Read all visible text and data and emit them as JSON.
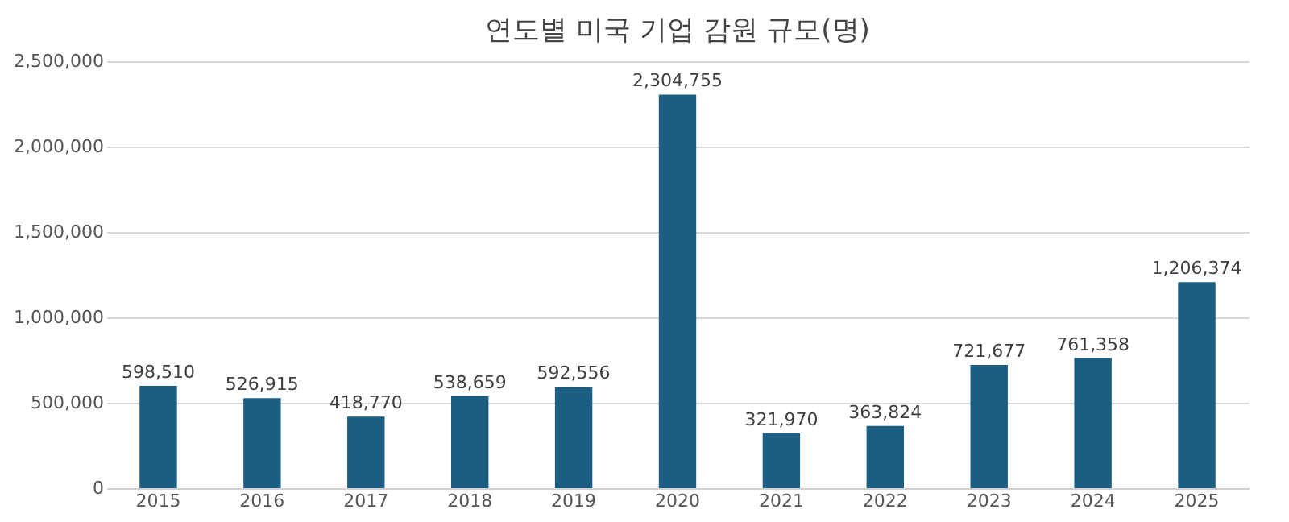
{
  "chart_data": {
    "type": "bar",
    "title": "연도별 미국 기업 감원 규모(명)",
    "categories": [
      "2015",
      "2016",
      "2017",
      "2018",
      "2019",
      "2020",
      "2021",
      "2022",
      "2023",
      "2024",
      "2025"
    ],
    "values": [
      598510,
      526915,
      418770,
      538659,
      592556,
      2304755,
      321970,
      363824,
      721677,
      761358,
      1206374
    ],
    "value_labels": [
      "598,510",
      "526,915",
      "418,770",
      "538,659",
      "592,556",
      "2,304,755",
      "321,970",
      "363,824",
      "721,677",
      "761,358",
      "1,206,374"
    ],
    "color": "#1b5e82",
    "ylim": [
      0,
      2500000
    ],
    "yticks": [
      0,
      {
        "value": 500000,
        "label": "500,000"
      },
      {
        "value": 1000000,
        "label": "1,000,000"
      },
      {
        "value": 1500000,
        "label": "1,500,000"
      },
      {
        "value": 2000000,
        "label": "2,000,000"
      },
      {
        "value": 2500000,
        "label": "2,500,000"
      }
    ],
    "grid": "y"
  }
}
